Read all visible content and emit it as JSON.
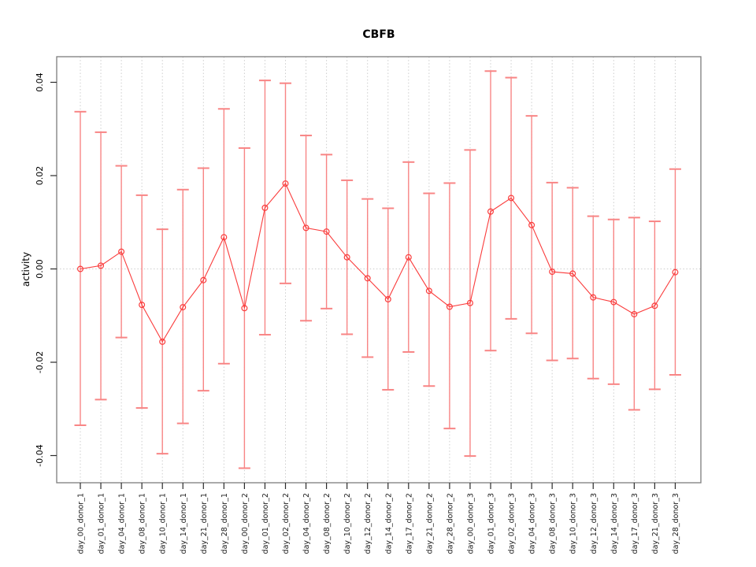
{
  "window": {
    "background": "#ffffff"
  },
  "chart_data": {
    "type": "line",
    "title": "CBFB",
    "xlabel": "",
    "ylabel": "activity",
    "ylim": [
      -0.045,
      0.045
    ],
    "yticks": [
      0.04,
      0.02,
      0.0,
      -0.02,
      -0.04
    ],
    "ytick_labels": [
      "0.04",
      "0.02",
      "0.00",
      "-0.02",
      "-0.04"
    ],
    "grid": "vertical dotted gridline at every category; horizontal dotted line at y=0 only",
    "legend": "none",
    "marker": "open-circle",
    "categories": [
      "day_00_donor_1",
      "day_01_donor_1",
      "day_04_donor_1",
      "day_08_donor_1",
      "day_10_donor_1",
      "day_14_donor_1",
      "day_21_donor_1",
      "day_28_donor_1",
      "day_00_donor_2",
      "day_01_donor_2",
      "day_02_donor_2",
      "day_04_donor_2",
      "day_08_donor_2",
      "day_10_donor_2",
      "day_12_donor_2",
      "day_14_donor_2",
      "day_17_donor_2",
      "day_21_donor_2",
      "day_28_donor_2",
      "day_00_donor_3",
      "day_01_donor_3",
      "day_02_donor_3",
      "day_04_donor_3",
      "day_08_donor_3",
      "day_10_donor_3",
      "day_12_donor_3",
      "day_14_donor_3",
      "day_17_donor_3",
      "day_21_donor_3",
      "day_28_donor_3"
    ],
    "series": [
      {
        "name": "activity",
        "values": [
          0.0,
          0.0007,
          0.0037,
          -0.0077,
          -0.0156,
          -0.0082,
          -0.0024,
          0.0068,
          -0.0084,
          0.0131,
          0.0183,
          0.0088,
          0.008,
          0.0025,
          -0.002,
          -0.0065,
          0.0025,
          -0.0047,
          -0.0081,
          -0.0073,
          0.0123,
          0.0152,
          0.0094,
          -0.0006,
          -0.001,
          -0.0061,
          -0.0071,
          -0.0097,
          -0.0079,
          -0.0007
        ],
        "error_high": [
          0.0337,
          0.0293,
          0.0221,
          0.0158,
          0.0085,
          0.017,
          0.0216,
          0.0343,
          0.0259,
          0.0404,
          0.0398,
          0.0286,
          0.0245,
          0.019,
          0.015,
          0.013,
          0.0229,
          0.0162,
          0.0184,
          0.0255,
          0.0424,
          0.041,
          0.0328,
          0.0185,
          0.0174,
          0.0113,
          0.0106,
          0.011,
          0.0102,
          0.0214
        ],
        "error_low": [
          -0.0335,
          -0.028,
          -0.0147,
          -0.0298,
          -0.0396,
          -0.0331,
          -0.0261,
          -0.0203,
          -0.0427,
          -0.0141,
          -0.0031,
          -0.0111,
          -0.0085,
          -0.014,
          -0.0189,
          -0.0259,
          -0.0178,
          -0.0251,
          -0.0342,
          -0.0401,
          -0.0175,
          -0.0107,
          -0.0138,
          -0.0196,
          -0.0192,
          -0.0235,
          -0.0247,
          -0.0302,
          -0.0258,
          -0.0227
        ]
      }
    ],
    "colors": {
      "series_line": "#fa3c3c",
      "marker_stroke": "#fa3c3c",
      "error_bar": "#f88585",
      "gridline": "#cdcdcd",
      "plot_border": "#7d7d7d",
      "axis_tick": "#2a2a2a",
      "text": "#000000"
    }
  }
}
